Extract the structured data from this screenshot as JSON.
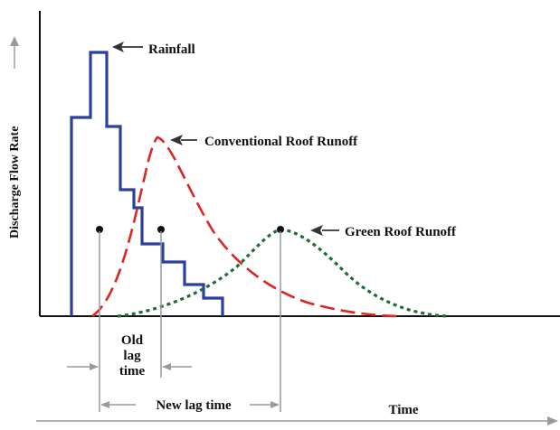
{
  "labels": {
    "rainfall": "Rainfall",
    "conventional": "Conventional Roof Runoff",
    "green": "Green Roof Runoff",
    "old_lag_line1": "Old",
    "old_lag_line2": "lag",
    "old_lag_line3": "time",
    "new_lag": "New lag time",
    "x_axis": "Time",
    "y_axis": "Discharge Flow Rate"
  },
  "colors": {
    "rainfall": "#2a3f9e",
    "conventional": "#e02424",
    "green": "#1f6b3a",
    "axis": "#111111",
    "guide": "#9a9a9a"
  }
}
